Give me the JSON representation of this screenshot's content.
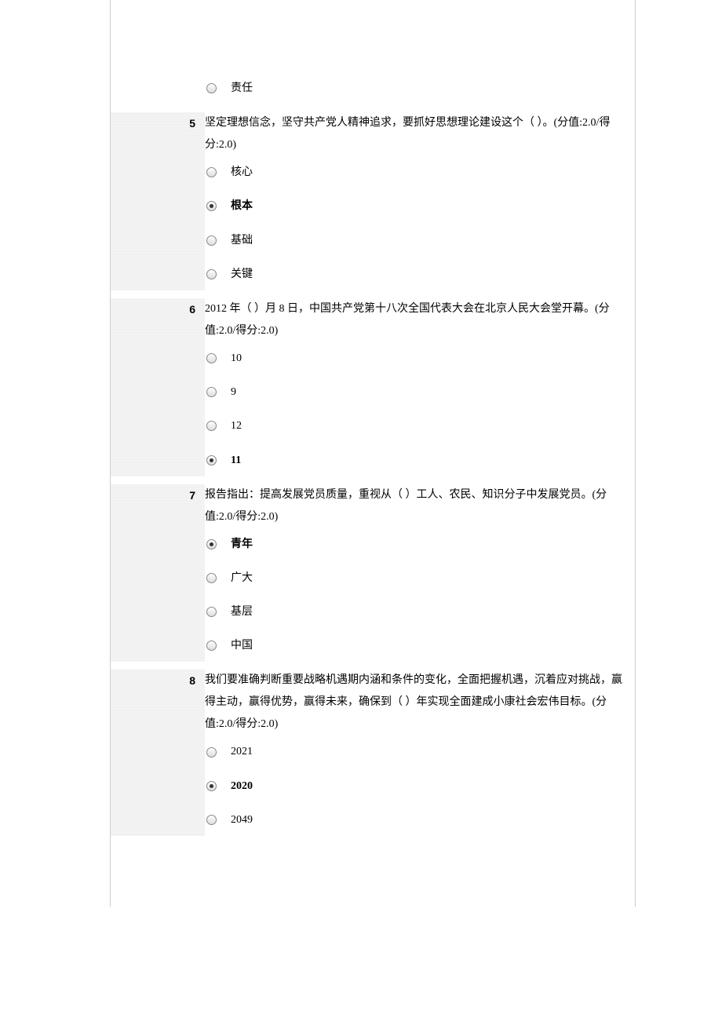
{
  "orphan_option": {
    "label": "责任",
    "selected": false
  },
  "questions": [
    {
      "num": "5",
      "text": "坚定理想信念，坚守共产党人精神追求，要抓好思想理论建设这个（ ）。(分值:2.0/得分:2.0)",
      "options": [
        {
          "label": "核心",
          "selected": false
        },
        {
          "label": "根本",
          "selected": true
        },
        {
          "label": "基础",
          "selected": false
        },
        {
          "label": "关键",
          "selected": false
        }
      ]
    },
    {
      "num": "6",
      "text": "2012 年（ ）月 8 日，中国共产党第十八次全国代表大会在北京人民大会堂开幕。(分值:2.0/得分:2.0)",
      "options": [
        {
          "label": "10",
          "selected": false
        },
        {
          "label": "9",
          "selected": false
        },
        {
          "label": "12",
          "selected": false
        },
        {
          "label": "11",
          "selected": true
        }
      ]
    },
    {
      "num": "7",
      "text": "报告指出：提高发展党员质量，重视从（ ）工人、农民、知识分子中发展党员。(分值:2.0/得分:2.0)",
      "options": [
        {
          "label": "青年",
          "selected": true
        },
        {
          "label": "广大",
          "selected": false
        },
        {
          "label": "基层",
          "selected": false
        },
        {
          "label": "中国",
          "selected": false
        }
      ]
    },
    {
      "num": "8",
      "text": "我们要准确判断重要战略机遇期内涵和条件的变化，全面把握机遇，沉着应对挑战，赢得主动，赢得优势，赢得未来，确保到（ ）年实现全面建成小康社会宏伟目标。(分值:2.0/得分:2.0)",
      "options": [
        {
          "label": "2021",
          "selected": false
        },
        {
          "label": "2020",
          "selected": true
        },
        {
          "label": "2049",
          "selected": false
        }
      ]
    }
  ]
}
